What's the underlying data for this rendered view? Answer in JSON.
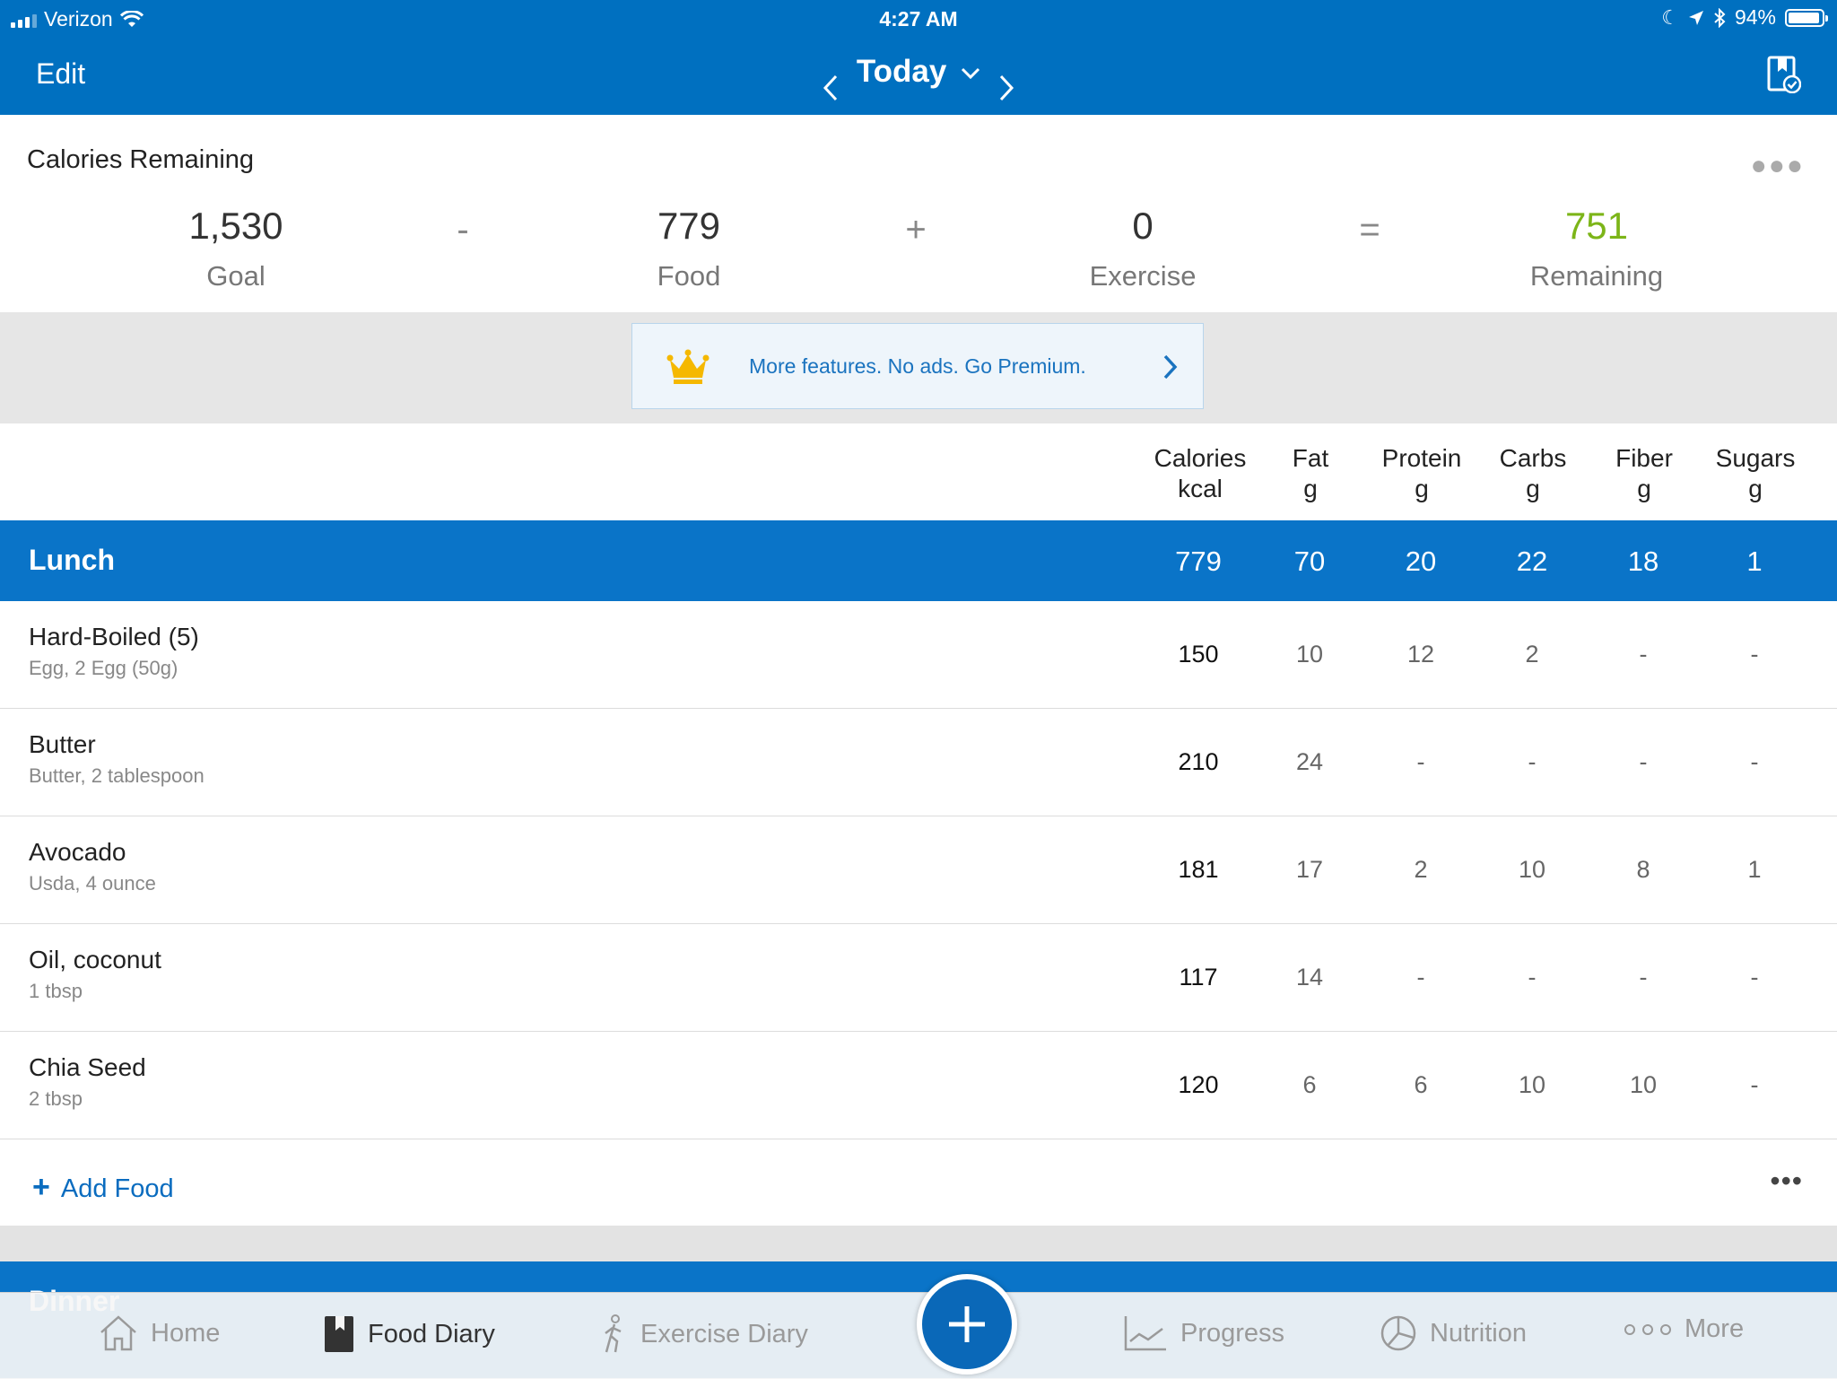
{
  "status_bar": {
    "carrier": "Verizon",
    "time": "4:27 AM",
    "battery": "94%",
    "battery_level": 0.94
  },
  "nav": {
    "edit_label": "Edit",
    "date_label": "Today",
    "prev_icon": "chevron-left-icon",
    "next_icon": "chevron-right-icon",
    "bookmark_icon": "bookmark-check-icon"
  },
  "calories": {
    "title": "Calories Remaining",
    "goal": {
      "value": "1,530",
      "label": "Goal"
    },
    "food": {
      "value": "779",
      "label": "Food"
    },
    "exercise": {
      "value": "0",
      "label": "Exercise"
    },
    "remaining": {
      "value": "751",
      "label": "Remaining"
    },
    "op_minus": "-",
    "op_plus": "+",
    "op_equals": "=",
    "remaining_color": "#7cb518"
  },
  "premium": {
    "text": "More features. No ads. Go Premium.",
    "icon": "crown-icon"
  },
  "columns": [
    {
      "name": "Calories",
      "unit": "kcal"
    },
    {
      "name": "Fat",
      "unit": "g"
    },
    {
      "name": "Protein",
      "unit": "g"
    },
    {
      "name": "Carbs",
      "unit": "g"
    },
    {
      "name": "Fiber",
      "unit": "g"
    },
    {
      "name": "Sugars",
      "unit": "g"
    }
  ],
  "meal": {
    "name": "Lunch",
    "totals": [
      "779",
      "70",
      "20",
      "22",
      "18",
      "1"
    ],
    "foods": [
      {
        "name": "Hard-Boiled (5)",
        "desc": "Egg, 2 Egg (50g)",
        "values": [
          "150",
          "10",
          "12",
          "2",
          "-",
          "-"
        ]
      },
      {
        "name": "Butter",
        "desc": "Butter, 2 tablespoon",
        "values": [
          "210",
          "24",
          "-",
          "-",
          "-",
          "-"
        ]
      },
      {
        "name": "Avocado",
        "desc": "Usda, 4 ounce",
        "values": [
          "181",
          "17",
          "2",
          "10",
          "8",
          "1"
        ]
      },
      {
        "name": "Oil, coconut",
        "desc": "1 tbsp",
        "values": [
          "117",
          "14",
          "-",
          "-",
          "-",
          "-"
        ]
      },
      {
        "name": "Chia Seed",
        "desc": "2 tbsp",
        "values": [
          "120",
          "6",
          "6",
          "10",
          "10",
          "-"
        ]
      }
    ],
    "add_food_label": "Add Food"
  },
  "next_meal": {
    "name": "Dinner"
  },
  "tabbar": {
    "home": "Home",
    "food_diary": "Food Diary",
    "exercise_diary": "Exercise Diary",
    "progress": "Progress",
    "nutrition": "Nutrition",
    "more": "More"
  },
  "colors": {
    "brand_blue": "#0070c0",
    "meal_blue": "#0a74c8",
    "link_blue": "#0a6cbf"
  }
}
